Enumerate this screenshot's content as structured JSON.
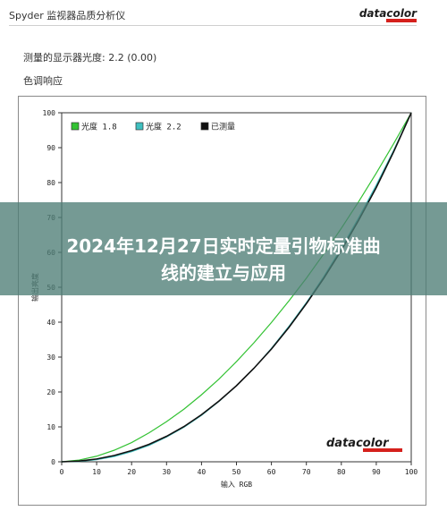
{
  "header": {
    "title": "Spyder 监视器品质分析仪",
    "brand": "datacolor",
    "brand_color": "#d5201c"
  },
  "gamma_line": "测量的显示器光度:  2.2 (0.00)",
  "section_title": "色调响应",
  "banner": {
    "line1": "2024年12月27日实时定量引物标准曲",
    "line2": "线的建立与应用",
    "color": "#4e7e76"
  },
  "chart_data": {
    "type": "line",
    "xlabel": "输入 RGB",
    "ylabel": "输出亮度",
    "xlim": [
      0,
      100
    ],
    "ylim": [
      0,
      100
    ],
    "xticks": [
      0,
      10,
      20,
      30,
      40,
      50,
      60,
      70,
      80,
      90,
      100
    ],
    "yticks": [
      0,
      10,
      20,
      30,
      40,
      50,
      60,
      70,
      80,
      90,
      100
    ],
    "grid": false,
    "legend_position": "top-left",
    "watermark": "datacolor",
    "series": [
      {
        "name": "光度 1.8",
        "color": "#33c233",
        "x": [
          0,
          5,
          10,
          15,
          20,
          25,
          30,
          35,
          40,
          45,
          50,
          55,
          60,
          65,
          70,
          75,
          80,
          85,
          90,
          95,
          100
        ],
        "y": [
          0,
          0.5,
          1.6,
          3.3,
          5.5,
          8.3,
          11.5,
          15.1,
          19.2,
          23.7,
          28.7,
          34.1,
          39.9,
          46.1,
          52.6,
          59.6,
          66.9,
          74.6,
          82.7,
          91.2,
          100
        ]
      },
      {
        "name": "光度 2.2",
        "color": "#3fbfbf",
        "x": [
          0,
          5,
          10,
          15,
          20,
          25,
          30,
          35,
          40,
          45,
          50,
          55,
          60,
          65,
          70,
          75,
          80,
          85,
          90,
          95,
          100
        ],
        "y": [
          0,
          0.1,
          0.6,
          1.5,
          2.9,
          4.7,
          7.1,
          9.9,
          13.3,
          17.3,
          21.8,
          26.8,
          32.5,
          38.8,
          45.6,
          53.1,
          61.2,
          70.0,
          79.3,
          89.3,
          100
        ]
      },
      {
        "name": "已测量",
        "color": "#111111",
        "x": [
          0,
          5,
          10,
          15,
          20,
          25,
          30,
          35,
          40,
          45,
          50,
          55,
          60,
          65,
          70,
          75,
          80,
          85,
          90,
          95,
          100
        ],
        "y": [
          0,
          0.2,
          0.8,
          1.8,
          3.2,
          5.0,
          7.3,
          10.1,
          13.5,
          17.4,
          21.8,
          26.8,
          32.3,
          38.5,
          45.3,
          52.6,
          60.6,
          69.3,
          78.6,
          88.9,
          100
        ]
      }
    ]
  }
}
